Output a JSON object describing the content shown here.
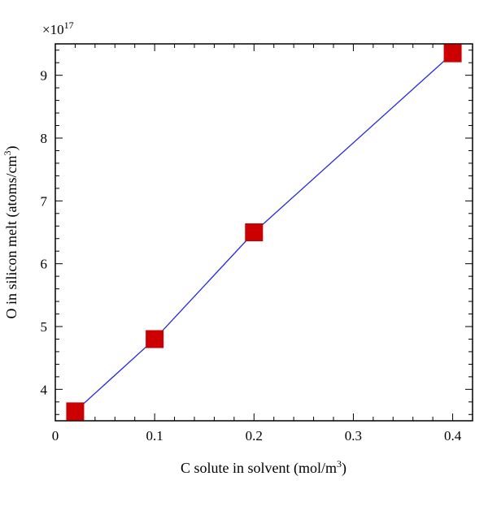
{
  "chart_data": {
    "type": "line",
    "title": "",
    "xlabel": "C solute in solvent (mol/m",
    "xlabel_sup": "3",
    "xlabel_end": ")",
    "ylabel": "O in silicon melt (atoms/cm",
    "ylabel_sup": "3",
    "ylabel_end": ")",
    "y_scale_base": "×10",
    "y_scale_exp": "17",
    "xlim": [
      0,
      0.42
    ],
    "ylim": [
      3.5,
      9.5
    ],
    "x_ticks": [
      0,
      0.1,
      0.2,
      0.3,
      0.4
    ],
    "x_tick_labels": [
      "0",
      "0.1",
      "0.2",
      "0.3",
      "0.4"
    ],
    "y_ticks": [
      4,
      5,
      6,
      7,
      8,
      9
    ],
    "y_tick_labels": [
      "4",
      "5",
      "6",
      "7",
      "8",
      "9"
    ],
    "grid": false,
    "series": [
      {
        "x": [
          0.02,
          0.1,
          0.2,
          0.4
        ],
        "y": [
          3.65,
          4.8,
          6.5,
          9.35
        ],
        "line_color": "#2a2adb",
        "marker": "square",
        "marker_color": "#cc0000"
      }
    ]
  }
}
